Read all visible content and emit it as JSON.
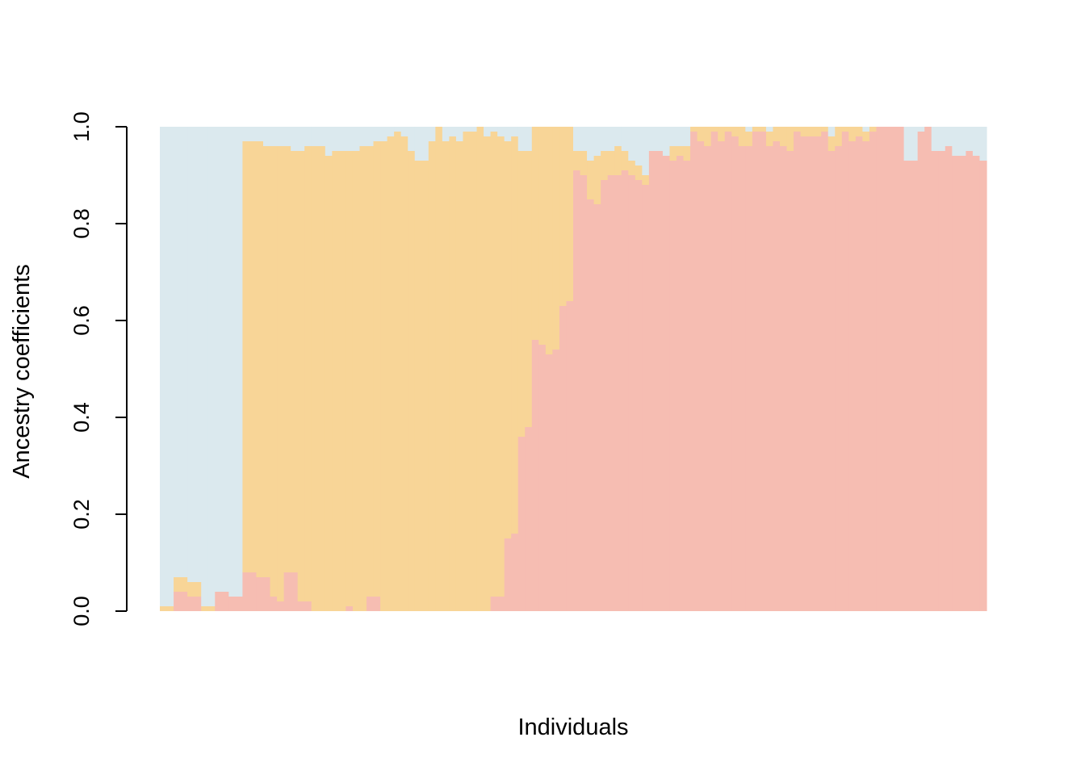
{
  "colors": {
    "background": "#ffffff",
    "cluster_blue": "#dbe9ee",
    "cluster_orange": "#f8d597",
    "cluster_red": "#f6bdb2"
  },
  "chart_data": {
    "type": "bar",
    "subtype": "stacked-proportions",
    "xlabel": "Individuals",
    "ylabel": "Ancestry coefficients",
    "ylim": [
      0,
      1
    ],
    "yticks": [
      "0.0",
      "0.2",
      "0.4",
      "0.6",
      "0.8",
      "1.0"
    ],
    "x_tick_labels": "none",
    "individuals": 120,
    "series": [
      {
        "color": "#f6bdb2",
        "values": [
          0.0,
          0.0,
          0.04,
          0.04,
          0.03,
          0.03,
          0.0,
          0.0,
          0.04,
          0.04,
          0.03,
          0.03,
          0.08,
          0.08,
          0.07,
          0.07,
          0.03,
          0.02,
          0.08,
          0.08,
          0.02,
          0.02,
          0.0,
          0.0,
          0.0,
          0.0,
          0.0,
          0.01,
          0.0,
          0.0,
          0.03,
          0.03,
          0.0,
          0.0,
          0.0,
          0.0,
          0.0,
          0.0,
          0.0,
          0.0,
          0.0,
          0.0,
          0.0,
          0.0,
          0.0,
          0.0,
          0.0,
          0.0,
          0.03,
          0.03,
          0.15,
          0.16,
          0.36,
          0.38,
          0.56,
          0.55,
          0.53,
          0.54,
          0.63,
          0.64,
          0.91,
          0.9,
          0.85,
          0.84,
          0.89,
          0.9,
          0.9,
          0.91,
          0.9,
          0.89,
          0.88,
          0.95,
          0.95,
          0.94,
          0.93,
          0.94,
          0.93,
          0.99,
          0.97,
          0.96,
          0.99,
          0.97,
          0.99,
          0.98,
          0.96,
          0.96,
          0.99,
          0.99,
          0.96,
          0.97,
          0.96,
          0.95,
          0.99,
          0.98,
          0.98,
          0.98,
          0.99,
          0.95,
          0.96,
          0.99,
          0.97,
          0.98,
          0.97,
          0.99,
          1.0,
          1.0,
          1.0,
          1.0,
          0.93,
          0.93,
          0.99,
          1.0,
          0.95,
          0.95,
          0.96,
          0.94,
          0.94,
          0.95,
          0.94,
          0.93
        ]
      },
      {
        "color": "#f8d597",
        "values": [
          0.01,
          0.01,
          0.03,
          0.03,
          0.03,
          0.03,
          0.01,
          0.01,
          0.0,
          0.0,
          0.0,
          0.0,
          0.89,
          0.89,
          0.9,
          0.89,
          0.93,
          0.94,
          0.88,
          0.87,
          0.93,
          0.94,
          0.96,
          0.96,
          0.94,
          0.95,
          0.95,
          0.94,
          0.95,
          0.96,
          0.93,
          0.94,
          0.97,
          0.98,
          0.99,
          0.98,
          0.95,
          0.93,
          0.93,
          0.97,
          1.0,
          0.97,
          0.98,
          0.97,
          0.99,
          0.99,
          1.0,
          0.98,
          0.96,
          0.95,
          0.82,
          0.82,
          0.59,
          0.57,
          0.44,
          0.45,
          0.47,
          0.46,
          0.37,
          0.36,
          0.04,
          0.05,
          0.08,
          0.1,
          0.06,
          0.05,
          0.06,
          0.04,
          0.03,
          0.03,
          0.02,
          0.0,
          0.0,
          0.0,
          0.03,
          0.02,
          0.03,
          0.01,
          0.03,
          0.04,
          0.01,
          0.03,
          0.01,
          0.02,
          0.04,
          0.03,
          0.01,
          0.01,
          0.03,
          0.03,
          0.04,
          0.05,
          0.01,
          0.02,
          0.02,
          0.02,
          0.01,
          0.03,
          0.04,
          0.01,
          0.03,
          0.02,
          0.02,
          0.01,
          0.0,
          0.0,
          0.0,
          0.0,
          0.0,
          0.0,
          0.0,
          0.0,
          0.0,
          0.0,
          0.0,
          0.0,
          0.0,
          0.0,
          0.0,
          0.0
        ]
      }
    ],
    "remainder_color": "#dbe9ee"
  }
}
